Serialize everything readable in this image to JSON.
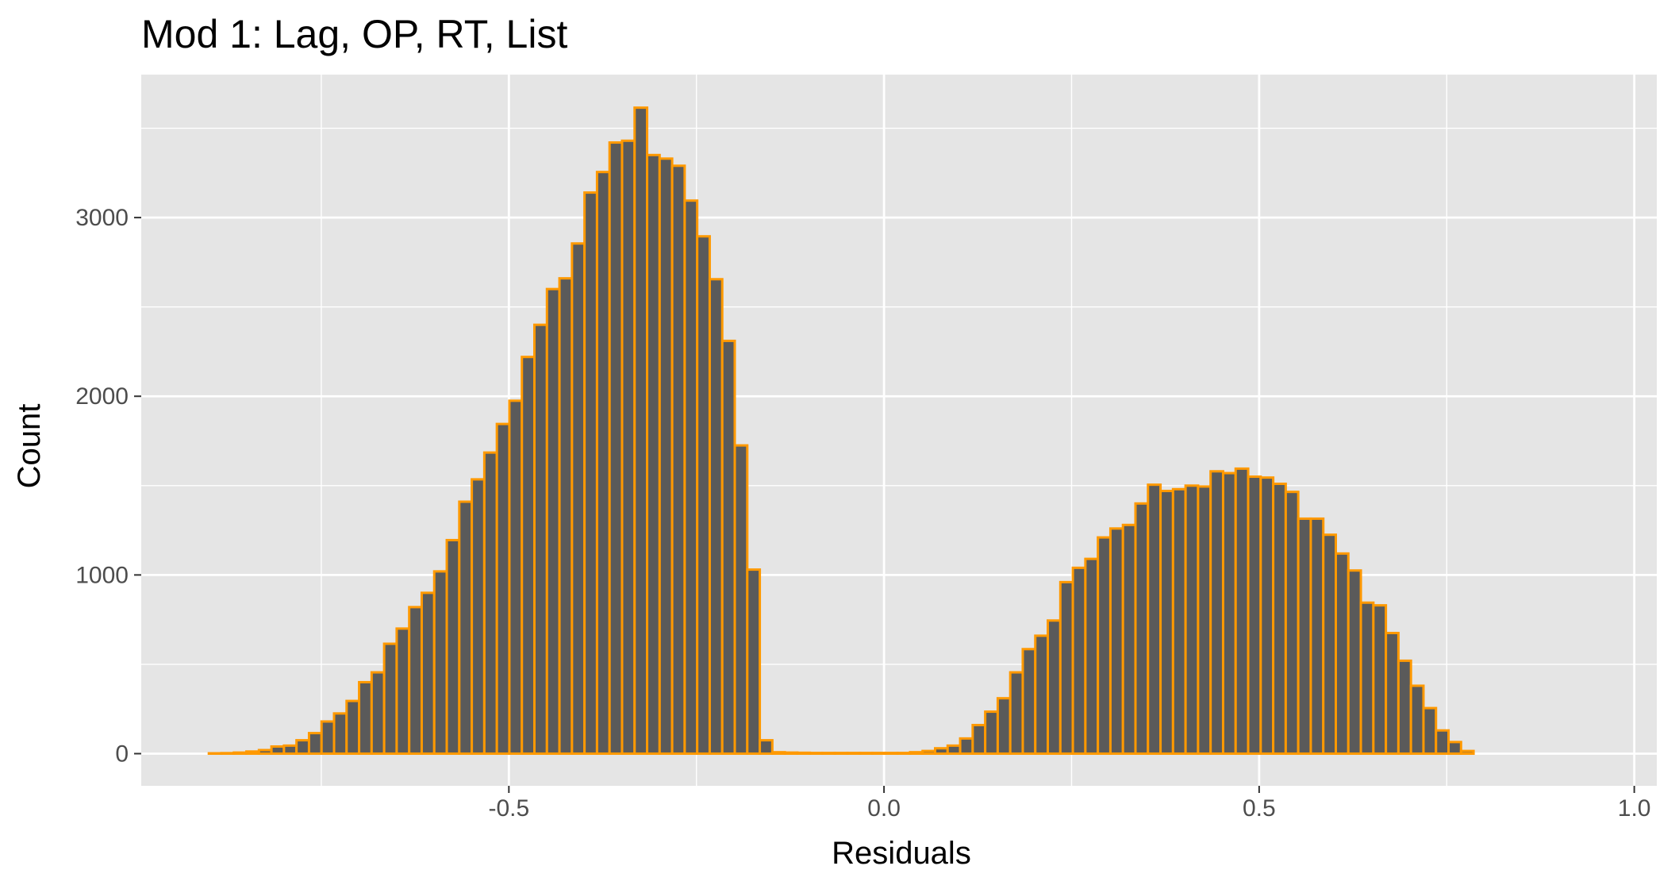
{
  "chart_data": {
    "type": "bar",
    "title": "Mod 1: Lag, OP, RT, List",
    "xlabel": "Residuals",
    "ylabel": "Count",
    "xlim": [
      -0.99,
      1.03
    ],
    "ylim": [
      -180,
      3800
    ],
    "xticks": [
      -0.5,
      0.0,
      0.5,
      1.0
    ],
    "xtick_labels": [
      "-0.5",
      "0.0",
      "0.5",
      "1.0"
    ],
    "yticks": [
      0,
      1000,
      2000,
      3000
    ],
    "ytick_labels": [
      "0",
      "1000",
      "2000",
      "3000"
    ],
    "grid": true,
    "legend": "none",
    "bin_width": 0.01669,
    "bin_start": -0.8999,
    "counts": [
      2,
      3,
      6,
      12,
      20,
      40,
      45,
      75,
      115,
      180,
      225,
      295,
      400,
      455,
      615,
      700,
      820,
      900,
      1020,
      1195,
      1410,
      1535,
      1685,
      1845,
      1975,
      2220,
      2400,
      2600,
      2660,
      2855,
      3140,
      3255,
      3420,
      3430,
      3615,
      3350,
      3330,
      3290,
      3095,
      2895,
      2655,
      2310,
      1725,
      1030,
      75,
      8,
      6,
      5,
      4,
      4,
      4,
      4,
      4,
      4,
      4,
      4,
      8,
      15,
      30,
      45,
      85,
      160,
      235,
      310,
      455,
      585,
      660,
      745,
      960,
      1040,
      1090,
      1210,
      1260,
      1280,
      1400,
      1505,
      1470,
      1480,
      1500,
      1495,
      1580,
      1570,
      1595,
      1550,
      1545,
      1510,
      1465,
      1315,
      1315,
      1225,
      1120,
      1025,
      845,
      830,
      675,
      520,
      380,
      255,
      130,
      65,
      15
    ],
    "colors": {
      "panel": "#e5e5e5",
      "grid_major": "#ffffff",
      "bar_fill": "#5a5a5a",
      "bar_outline": "#ff9900",
      "tick": "#333333"
    }
  }
}
